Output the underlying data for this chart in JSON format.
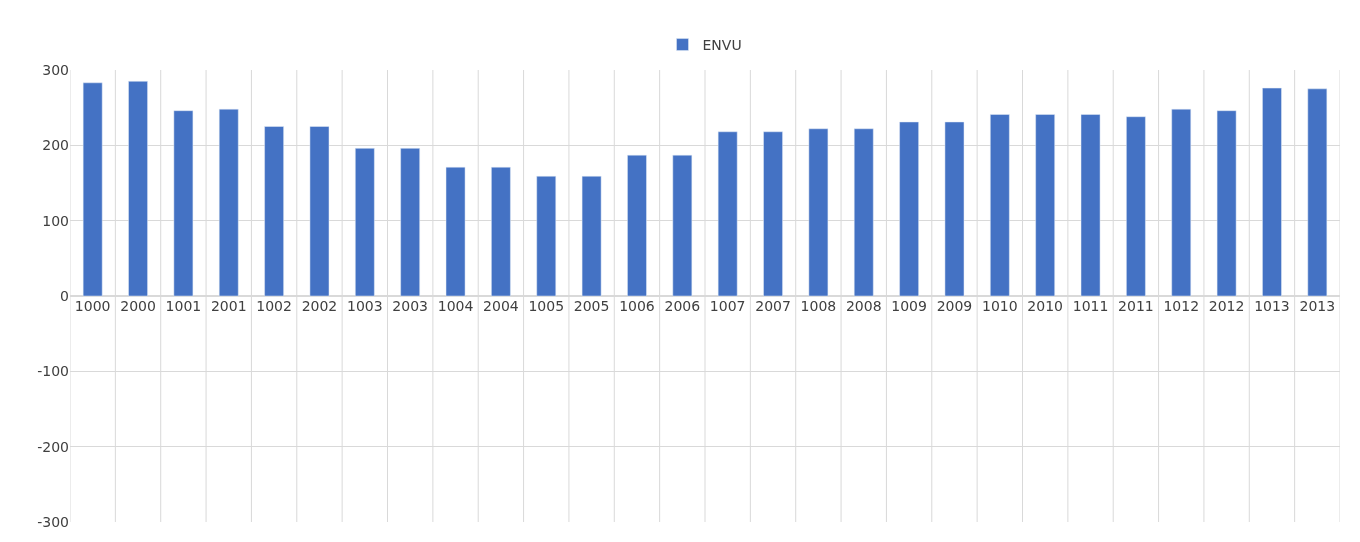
{
  "chart_data": {
    "type": "bar",
    "categories": [
      "1000",
      "2000",
      "1001",
      "2001",
      "1002",
      "2002",
      "1003",
      "2003",
      "1004",
      "2004",
      "1005",
      "2005",
      "1006",
      "2006",
      "1007",
      "2007",
      "1008",
      "2008",
      "1009",
      "2009",
      "1010",
      "2010",
      "1011",
      "2011",
      "1012",
      "2012",
      "1013",
      "2013"
    ],
    "series": [
      {
        "name": "ENVU",
        "color": "#4472c4",
        "values": [
          283,
          285,
          246,
          248,
          225,
          225,
          196,
          196,
          171,
          171,
          159,
          159,
          187,
          187,
          218,
          218,
          222,
          222,
          231,
          231,
          241,
          241,
          241,
          238,
          248,
          246,
          276,
          275
        ]
      }
    ],
    "ylim": [
      -300,
      300
    ],
    "yticks": [
      -300,
      -200,
      -100,
      0,
      100,
      200,
      300
    ],
    "grid": true,
    "legend": "top"
  }
}
